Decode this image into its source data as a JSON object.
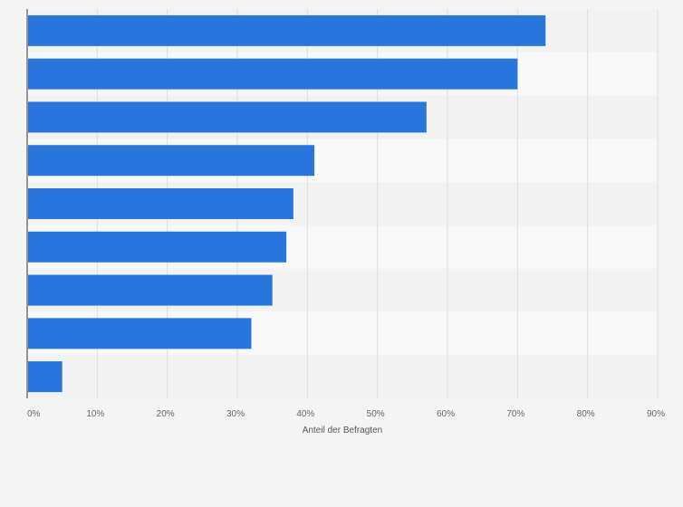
{
  "chart_data": {
    "type": "bar",
    "orientation": "horizontal",
    "categories": [
      "",
      "",
      "",
      "",
      "",
      "",
      "",
      "",
      ""
    ],
    "values": [
      74,
      70,
      57,
      41,
      38,
      37,
      35,
      32,
      5
    ],
    "xlabel": "Anteil der Befragten",
    "xlim": [
      0,
      90
    ],
    "xticks": [
      "0%",
      "10%",
      "20%",
      "30%",
      "40%",
      "50%",
      "60%",
      "70%",
      "80%",
      "90%"
    ],
    "grid": true,
    "colors": {
      "bar": "#2876dd",
      "band_light": "#f8f8f8",
      "band_dark": "#f2f2f2",
      "grid": "#dddddd",
      "axis": "#333333",
      "background": "#f4f4f4"
    }
  }
}
